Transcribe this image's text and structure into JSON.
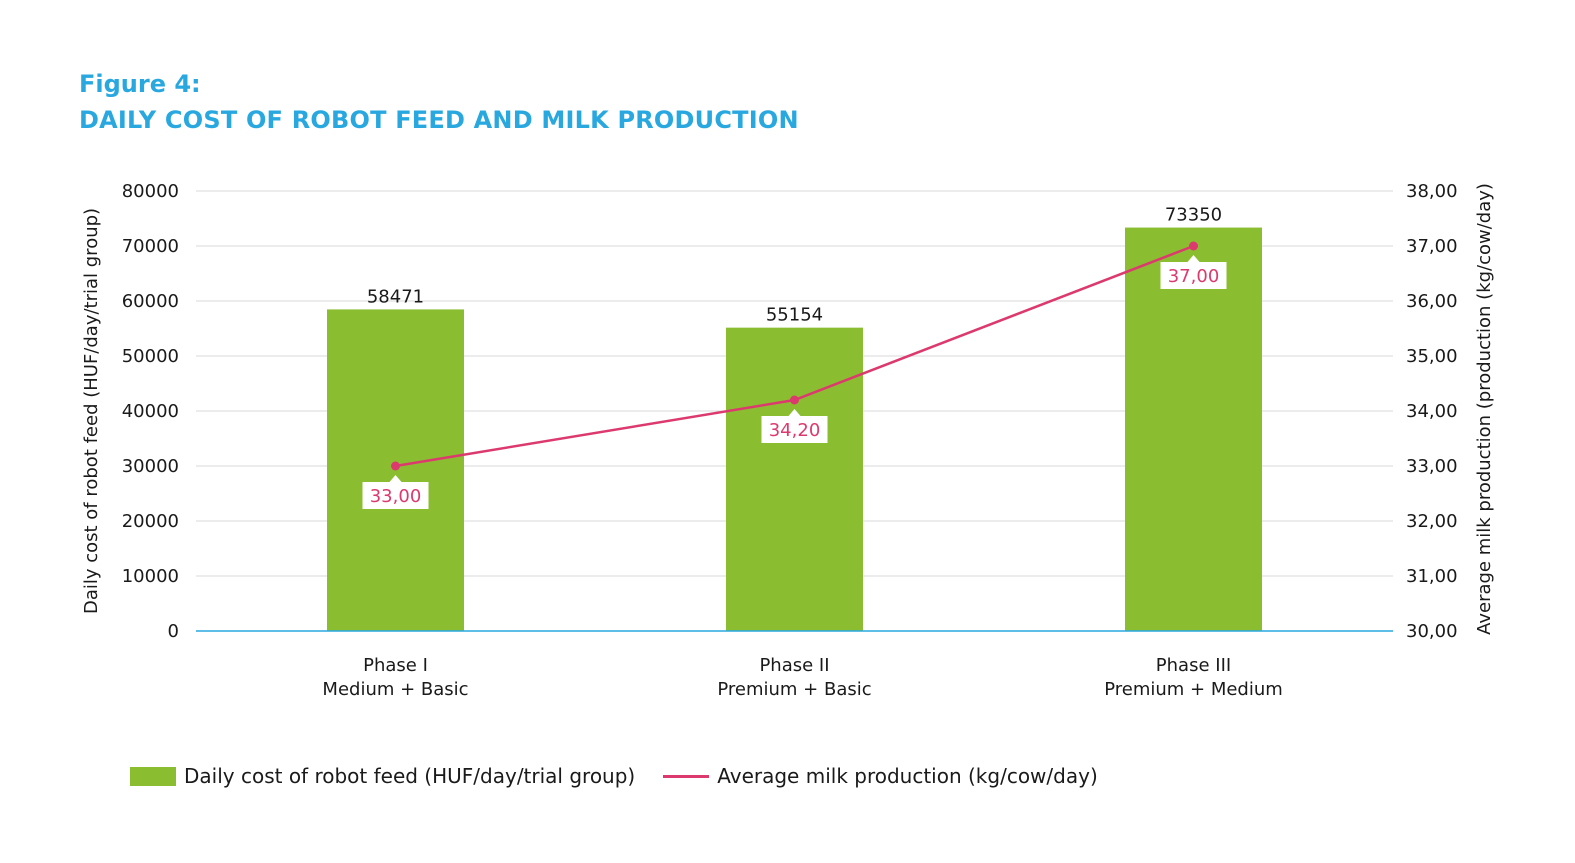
{
  "figure_label": "Figure 4:",
  "title": "DAILY COST OF ROBOT FEED AND MILK PRODUCTION",
  "colors": {
    "title": "#29a8e0",
    "bar": "#8bbd31",
    "line": "#dc3a6e",
    "axis": "#29a8e0",
    "grid": "#d9d9d9"
  },
  "chart_data": {
    "type": "bar",
    "categories": [
      [
        "Phase I",
        "Medium + Basic"
      ],
      [
        "Phase II",
        "Premium + Basic"
      ],
      [
        "Phase III",
        "Premium + Medium"
      ]
    ],
    "series": [
      {
        "name": "Daily cost of robot feed (HUF/day/trial group)",
        "kind": "bar",
        "axis": "left",
        "values": [
          58471,
          55154,
          73350
        ],
        "labels": [
          "58471",
          "55154",
          "73350"
        ]
      },
      {
        "name": "Average milk production (kg/cow/day)",
        "kind": "line",
        "axis": "right",
        "values": [
          33.0,
          34.2,
          37.0
        ],
        "labels": [
          "33,00",
          "34,20",
          "37,00"
        ]
      }
    ],
    "ylabel_left": "Daily cost of robot feed (HUF/day/trial group)",
    "ylabel_right": "Average milk production (production (kg/cow/day)",
    "ylim_left": [
      0,
      80000
    ],
    "ylim_right": [
      30,
      38
    ],
    "yticks_left": [
      "0",
      "10000",
      "20000",
      "30000",
      "40000",
      "50000",
      "60000",
      "70000",
      "80000"
    ],
    "yticks_right": [
      "30,00",
      "31,00",
      "32,00",
      "33,00",
      "34,00",
      "35,00",
      "36,00",
      "37,00",
      "38,00"
    ],
    "grid": true,
    "legend_position": "bottom-left"
  }
}
